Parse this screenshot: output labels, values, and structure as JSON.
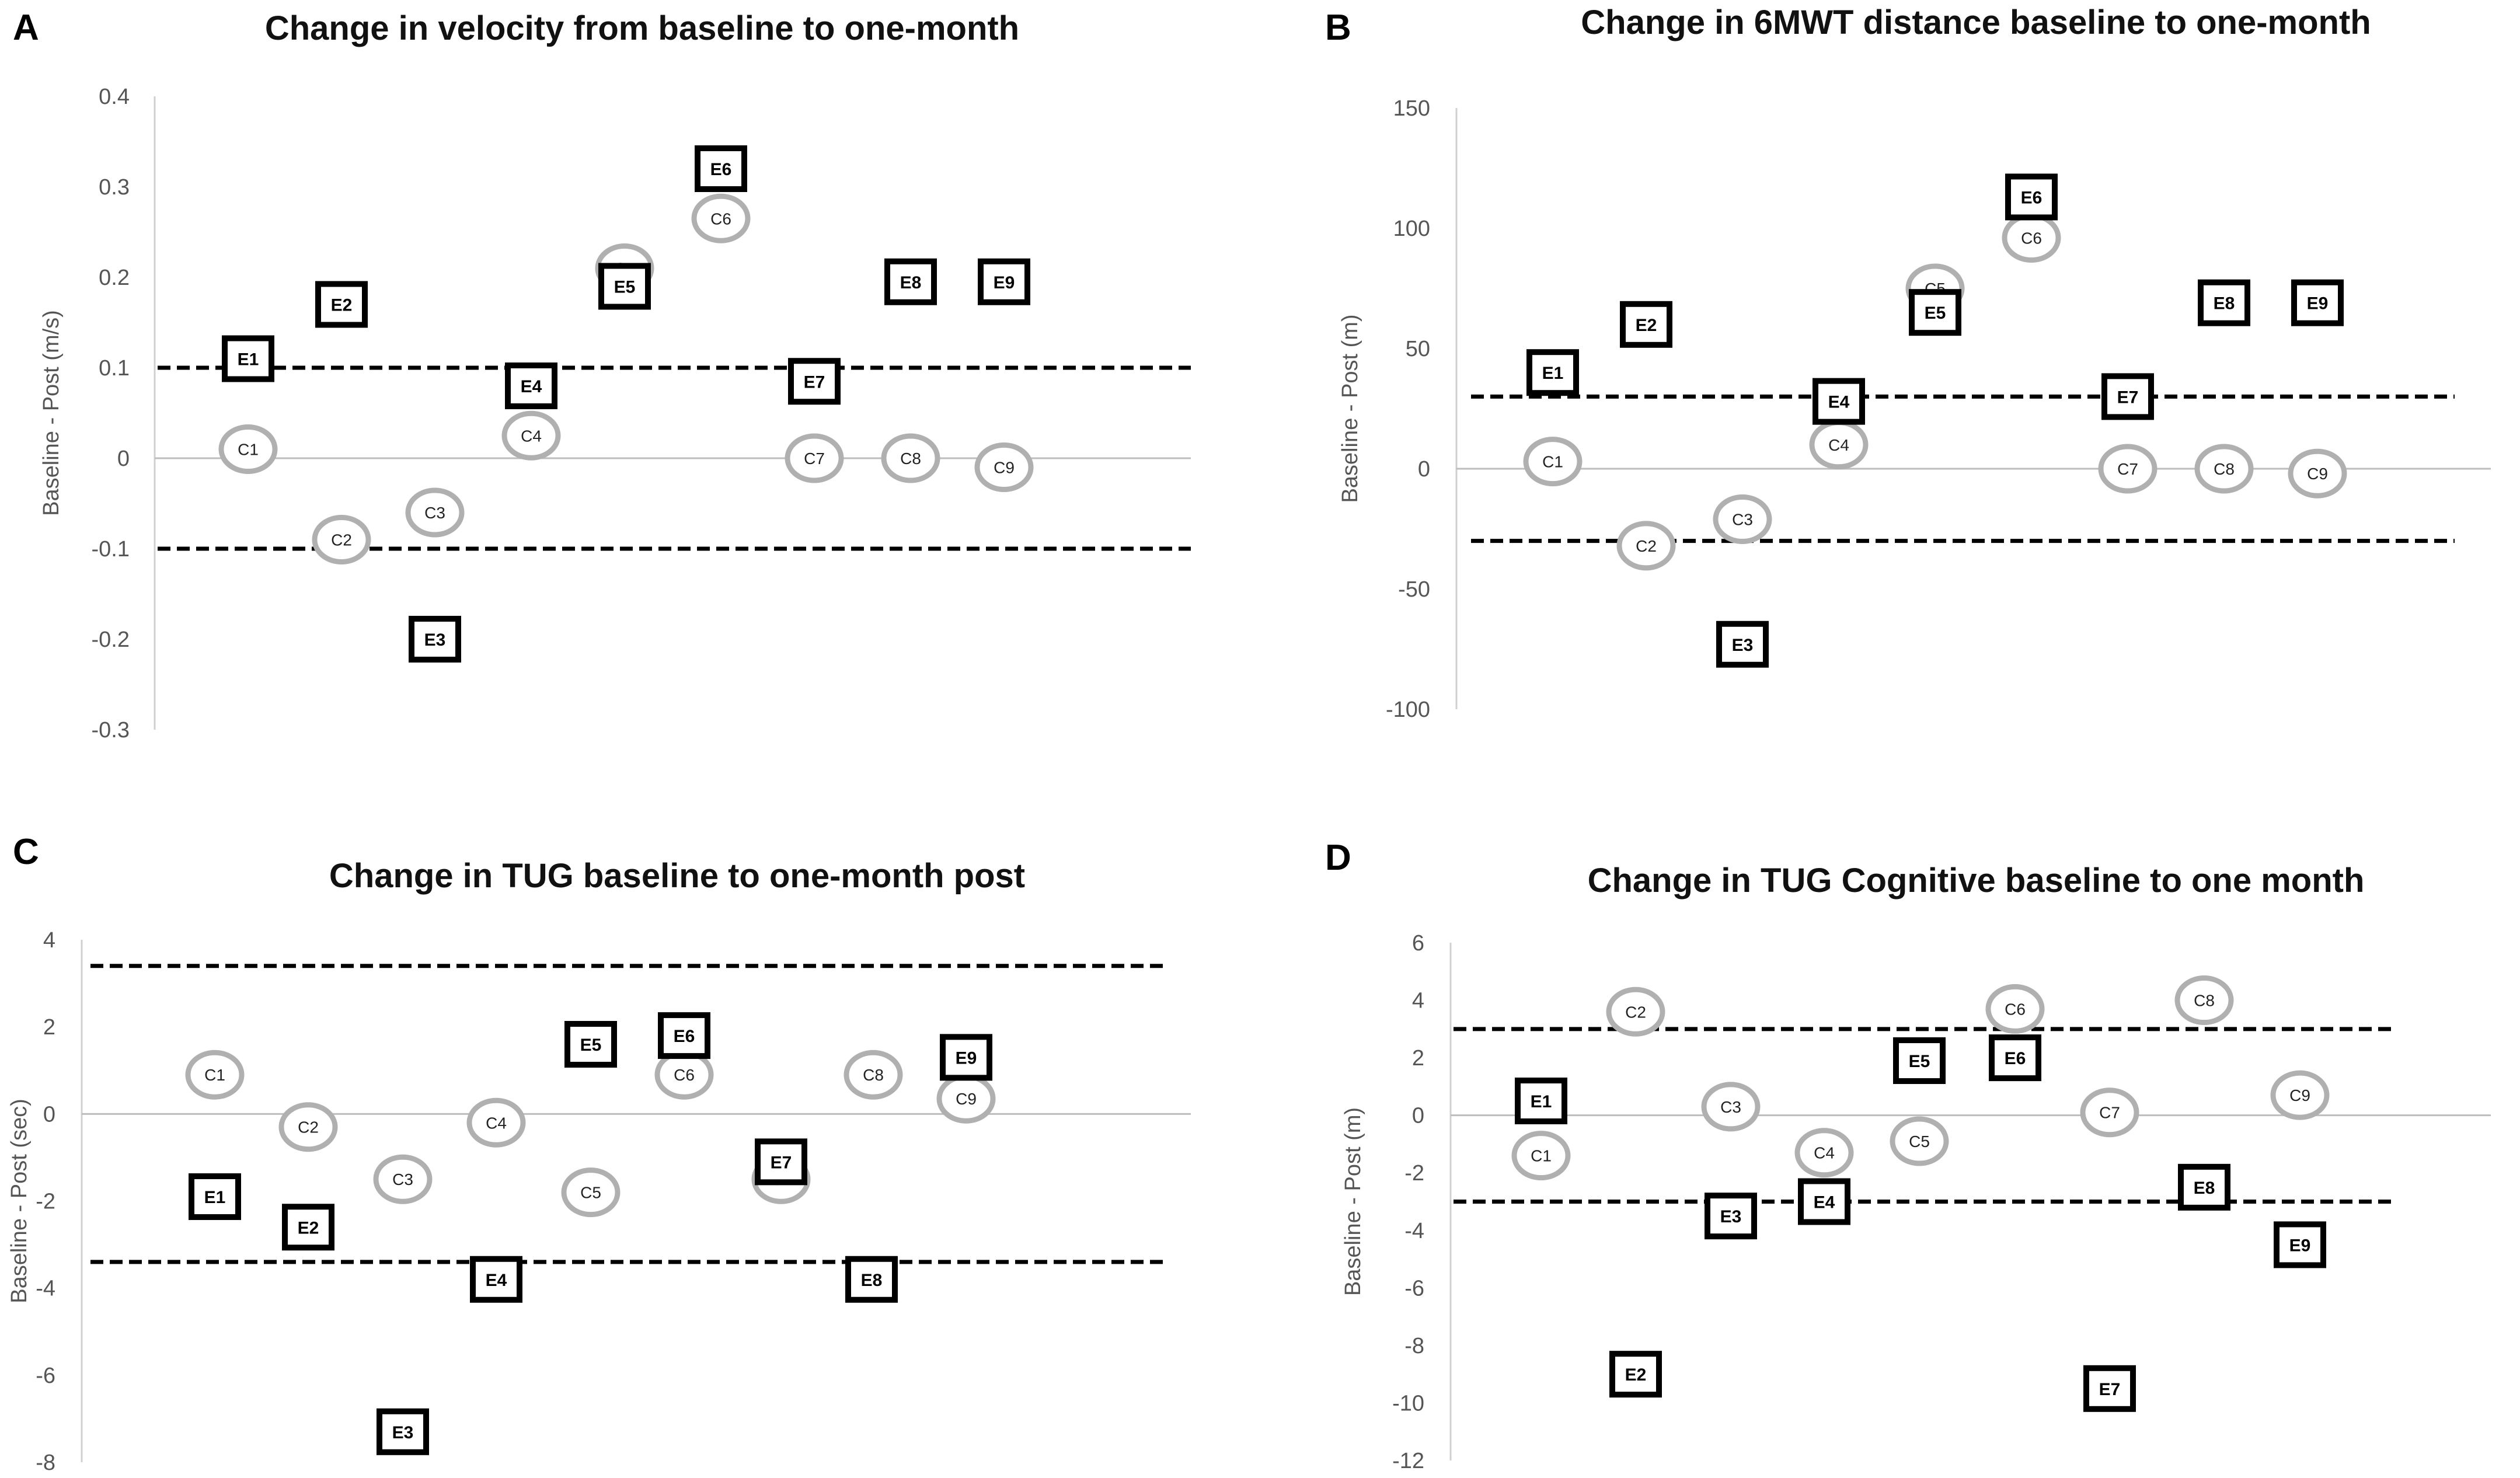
{
  "chart_data": [
    {
      "type": "scatter",
      "panel": "A",
      "title": "Change in velocity from baseline to one-month",
      "ylabel": "Baseline - Post (m/s)",
      "ylim": [
        -0.3,
        0.4
      ],
      "yticks": [
        0.4,
        0.3,
        0.2,
        0.1,
        0,
        -0.1,
        -0.2,
        -0.3
      ],
      "thresholds": [
        0.1,
        -0.1
      ],
      "categories": [
        "1",
        "2",
        "3",
        "4",
        "5",
        "6",
        "7",
        "8",
        "9"
      ],
      "series": [
        {
          "name": "E",
          "labels": [
            "E1",
            "E2",
            "E3",
            "E4",
            "E5",
            "E6",
            "E7",
            "E8",
            "E9"
          ],
          "values": [
            0.11,
            0.17,
            -0.2,
            0.08,
            0.19,
            0.32,
            0.085,
            0.195,
            0.195
          ]
        },
        {
          "name": "C",
          "labels": [
            "C1",
            "C2",
            "C3",
            "C4",
            "C5",
            "C6",
            "C7",
            "C8",
            "C9"
          ],
          "values": [
            0.01,
            -0.09,
            -0.06,
            0.025,
            0.21,
            0.265,
            0.0,
            0.0,
            -0.01
          ]
        }
      ]
    },
    {
      "type": "scatter",
      "panel": "B",
      "title": "Change in 6MWT distance baseline to one-month",
      "ylabel": "Baseline - Post (m)",
      "ylim": [
        -100,
        150
      ],
      "yticks": [
        150,
        100,
        50,
        0,
        -50,
        -100
      ],
      "thresholds": [
        30,
        -30
      ],
      "categories": [
        "1",
        "2",
        "3",
        "4",
        "5",
        "6",
        "7",
        "8",
        "9"
      ],
      "series": [
        {
          "name": "E",
          "labels": [
            "E1",
            "E2",
            "E3",
            "E4",
            "E5",
            "E6",
            "E7",
            "E8",
            "E9"
          ],
          "values": [
            40,
            60,
            -73,
            28,
            65,
            113,
            30,
            69,
            69
          ]
        },
        {
          "name": "C",
          "labels": [
            "C1",
            "C2",
            "C3",
            "C4",
            "C5",
            "C6",
            "C7",
            "C8",
            "C9"
          ],
          "values": [
            3,
            -32,
            -21,
            10,
            75,
            96,
            0,
            0,
            -2
          ]
        }
      ]
    },
    {
      "type": "scatter",
      "panel": "C",
      "title": "Change in TUG baseline to one-month post",
      "ylabel": "Baseline - Post (sec)",
      "ylim": [
        -8,
        4
      ],
      "yticks": [
        4,
        2,
        0,
        -2,
        -4,
        -6,
        -8
      ],
      "thresholds": [
        3.4,
        -3.4
      ],
      "categories": [
        "1",
        "2",
        "3",
        "4",
        "5",
        "6",
        "7",
        "8",
        "9"
      ],
      "series": [
        {
          "name": "E",
          "labels": [
            "E1",
            "E2",
            "E3",
            "E4",
            "E5",
            "E6",
            "E8",
            "E7",
            "E9"
          ],
          "values": [
            -1.9,
            -2.6,
            -7.3,
            -3.8,
            1.6,
            1.8,
            -3.8,
            -1.1,
            1.3
          ]
        },
        {
          "name": "C",
          "labels": [
            "C1",
            "C2",
            "C3",
            "C4",
            "C5",
            "C6",
            "C7",
            "C8",
            "C9"
          ],
          "values": [
            0.9,
            -0.3,
            -1.5,
            -0.2,
            -1.8,
            0.9,
            -1.5,
            0.9,
            0.35
          ]
        }
      ]
    },
    {
      "type": "scatter",
      "panel": "D",
      "title": "Change in TUG Cognitive baseline to one month",
      "ylabel": "Baseline - Post (m)",
      "ylim": [
        -12,
        6
      ],
      "yticks": [
        6,
        4,
        2,
        0,
        -2,
        -4,
        -6,
        -8,
        -10,
        -12
      ],
      "thresholds": [
        3,
        -3
      ],
      "categories": [
        "1",
        "2",
        "3",
        "4",
        "5",
        "6",
        "7",
        "8",
        "9"
      ],
      "series": [
        {
          "name": "E",
          "labels": [
            "E1",
            "E2",
            "E3",
            "E4",
            "E5",
            "E6",
            "E7",
            "E8",
            "E9"
          ],
          "values": [
            0.5,
            -9.0,
            -3.5,
            -3.0,
            1.9,
            2.0,
            -9.5,
            -2.5,
            -4.5
          ]
        },
        {
          "name": "C",
          "labels": [
            "C1",
            "C2",
            "C3",
            "C4",
            "C5",
            "C6",
            "C7",
            "C8",
            "C9"
          ],
          "values": [
            -1.4,
            3.6,
            0.3,
            -1.3,
            -0.9,
            3.7,
            0.1,
            4.0,
            0.7
          ]
        }
      ]
    }
  ]
}
